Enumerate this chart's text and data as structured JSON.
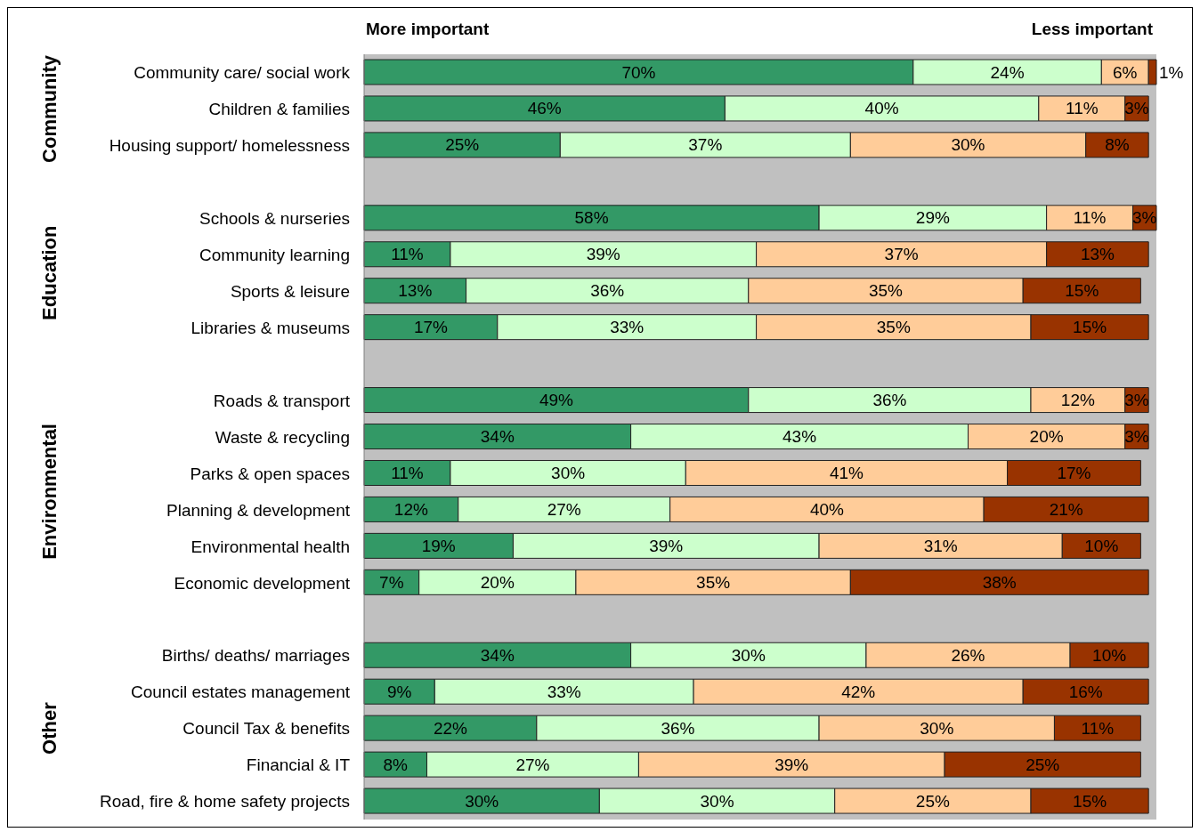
{
  "chart_data": {
    "type": "bar",
    "orientation": "horizontal",
    "stacked": true,
    "categories": [
      "Community care/ social work",
      "Children & families",
      "Housing support/ homelessness",
      null,
      "Schools & nurseries",
      "Community learning",
      "Sports & leisure",
      "Libraries & museums",
      null,
      "Roads & transport",
      "Waste & recycling",
      "Parks & open spaces",
      "Planning & development",
      "Environmental health",
      "Economic development",
      null,
      "Births/ deaths/ marriages",
      "Council estates management",
      "Council Tax & benefits",
      "Financial & IT",
      "Road, fire & home safety projects"
    ],
    "series": [
      {
        "color": "#339966",
        "values": [
          70,
          46,
          25,
          null,
          58,
          11,
          13,
          17,
          null,
          49,
          34,
          11,
          12,
          19,
          7,
          null,
          34,
          9,
          22,
          8,
          30
        ],
        "value_labels": [
          "70%",
          "46%",
          "25%",
          null,
          "58%",
          "11%",
          "13%",
          "17%",
          null,
          "49%",
          "34%",
          "11%",
          "12%",
          "19%",
          "7%",
          null,
          "34%",
          "9%",
          "22%",
          "8%",
          "30%"
        ]
      },
      {
        "color": "#ccffcc",
        "values": [
          24,
          40,
          37,
          null,
          29,
          39,
          36,
          33,
          null,
          36,
          43,
          30,
          27,
          39,
          20,
          null,
          30,
          33,
          36,
          27,
          30
        ],
        "value_labels": [
          "24%",
          "40%",
          "37%",
          null,
          "29%",
          "39%",
          "36%",
          "33%",
          null,
          "36%",
          "43%",
          "30%",
          "27%",
          "39%",
          "20%",
          null,
          "30%",
          "33%",
          "36%",
          "27%",
          "30%"
        ]
      },
      {
        "color": "#ffcc99",
        "values": [
          6,
          11,
          30,
          null,
          11,
          37,
          35,
          35,
          null,
          12,
          20,
          41,
          40,
          31,
          35,
          null,
          26,
          42,
          30,
          39,
          25
        ],
        "value_labels": [
          "6%",
          "11%",
          "30%",
          null,
          "11%",
          "37%",
          "35%",
          "35%",
          null,
          "12%",
          "20%",
          "41%",
          "40%",
          "31%",
          "35%",
          null,
          "26%",
          "42%",
          "30%",
          "39%",
          "25%"
        ]
      },
      {
        "color": "#993300",
        "values": [
          1,
          3,
          8,
          null,
          3,
          13,
          15,
          15,
          null,
          3,
          3,
          17,
          21,
          10,
          38,
          null,
          10,
          16,
          11,
          25,
          15
        ],
        "value_labels": [
          "1%",
          "3%",
          "8%",
          null,
          "3%",
          "13%",
          "15%",
          "15%",
          null,
          "3%",
          "3%",
          "17%",
          "21%",
          "10%",
          "38%",
          null,
          "10%",
          "16%",
          "11%",
          "25%",
          "15%"
        ]
      }
    ],
    "annotations": [
      "More important",
      "Less important",
      "Community",
      "Education",
      "Environmental",
      "Other"
    ]
  }
}
